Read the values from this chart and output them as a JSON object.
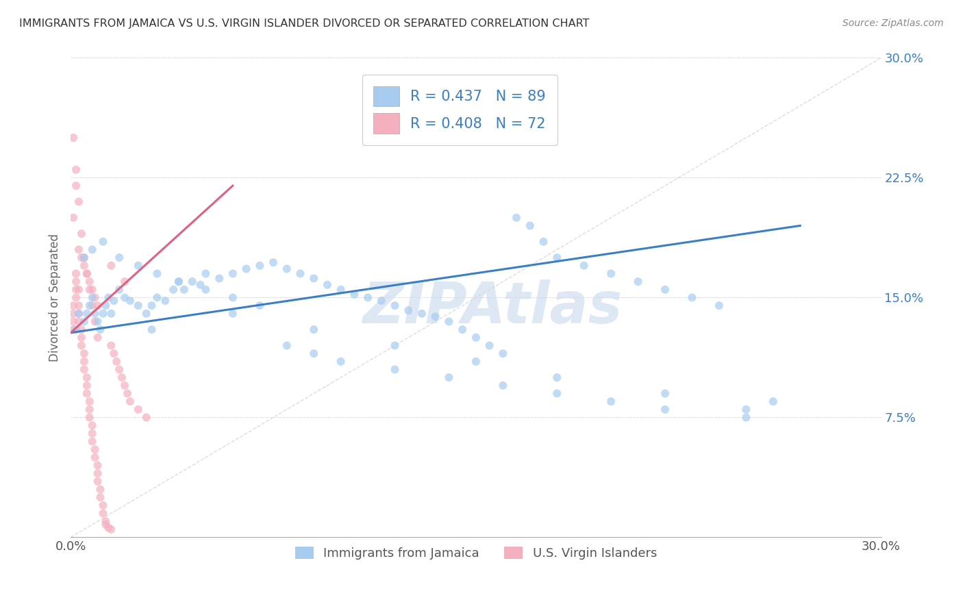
{
  "title": "IMMIGRANTS FROM JAMAICA VS U.S. VIRGIN ISLANDER DIVORCED OR SEPARATED CORRELATION CHART",
  "source": "Source: ZipAtlas.com",
  "ylabel": "Divorced or Separated",
  "xlim": [
    0.0,
    0.3
  ],
  "ylim": [
    0.0,
    0.3
  ],
  "xticks": [
    0.0,
    0.05,
    0.1,
    0.15,
    0.2,
    0.25,
    0.3
  ],
  "xticklabels": [
    "0.0%",
    "",
    "",
    "",
    "",
    "",
    "30.0%"
  ],
  "yticks": [
    0.0,
    0.075,
    0.15,
    0.225,
    0.3
  ],
  "yticklabels": [
    "",
    "7.5%",
    "15.0%",
    "22.5%",
    "30.0%"
  ],
  "blue_R": 0.437,
  "blue_N": 89,
  "pink_R": 0.408,
  "pink_N": 72,
  "blue_color": "#A8CCF0",
  "pink_color": "#F5B0C0",
  "blue_line_color": "#3A7EC6",
  "pink_line_color": "#E06080",
  "blue_legend_label": "Immigrants from Jamaica",
  "pink_legend_label": "U.S. Virgin Islanders",
  "watermark": "ZIPAtlas",
  "blue_scatter_x": [
    0.002,
    0.003,
    0.005,
    0.006,
    0.007,
    0.008,
    0.009,
    0.01,
    0.011,
    0.012,
    0.013,
    0.014,
    0.015,
    0.016,
    0.018,
    0.02,
    0.022,
    0.025,
    0.028,
    0.03,
    0.032,
    0.035,
    0.038,
    0.04,
    0.042,
    0.045,
    0.048,
    0.05,
    0.055,
    0.06,
    0.065,
    0.07,
    0.075,
    0.08,
    0.085,
    0.09,
    0.095,
    0.1,
    0.105,
    0.11,
    0.115,
    0.12,
    0.125,
    0.13,
    0.135,
    0.14,
    0.145,
    0.15,
    0.155,
    0.16,
    0.165,
    0.17,
    0.175,
    0.18,
    0.19,
    0.2,
    0.21,
    0.22,
    0.23,
    0.24,
    0.005,
    0.008,
    0.012,
    0.018,
    0.025,
    0.032,
    0.04,
    0.05,
    0.06,
    0.07,
    0.08,
    0.09,
    0.1,
    0.12,
    0.14,
    0.16,
    0.18,
    0.2,
    0.22,
    0.25,
    0.03,
    0.06,
    0.09,
    0.12,
    0.15,
    0.18,
    0.22,
    0.26,
    0.25
  ],
  "blue_scatter_y": [
    0.13,
    0.14,
    0.135,
    0.14,
    0.145,
    0.15,
    0.14,
    0.135,
    0.13,
    0.14,
    0.145,
    0.15,
    0.14,
    0.148,
    0.155,
    0.15,
    0.148,
    0.145,
    0.14,
    0.145,
    0.15,
    0.148,
    0.155,
    0.16,
    0.155,
    0.16,
    0.158,
    0.165,
    0.162,
    0.165,
    0.168,
    0.17,
    0.172,
    0.168,
    0.165,
    0.162,
    0.158,
    0.155,
    0.152,
    0.15,
    0.148,
    0.145,
    0.142,
    0.14,
    0.138,
    0.135,
    0.13,
    0.125,
    0.12,
    0.115,
    0.2,
    0.195,
    0.185,
    0.175,
    0.17,
    0.165,
    0.16,
    0.155,
    0.15,
    0.145,
    0.175,
    0.18,
    0.185,
    0.175,
    0.17,
    0.165,
    0.16,
    0.155,
    0.15,
    0.145,
    0.12,
    0.115,
    0.11,
    0.105,
    0.1,
    0.095,
    0.09,
    0.085,
    0.08,
    0.075,
    0.13,
    0.14,
    0.13,
    0.12,
    0.11,
    0.1,
    0.09,
    0.085,
    0.08
  ],
  "pink_scatter_x": [
    0.001,
    0.001,
    0.001,
    0.001,
    0.002,
    0.002,
    0.002,
    0.002,
    0.003,
    0.003,
    0.003,
    0.003,
    0.004,
    0.004,
    0.004,
    0.005,
    0.005,
    0.005,
    0.006,
    0.006,
    0.006,
    0.007,
    0.007,
    0.007,
    0.008,
    0.008,
    0.008,
    0.009,
    0.009,
    0.01,
    0.01,
    0.01,
    0.011,
    0.011,
    0.012,
    0.012,
    0.013,
    0.013,
    0.014,
    0.015,
    0.015,
    0.016,
    0.017,
    0.018,
    0.019,
    0.02,
    0.021,
    0.022,
    0.025,
    0.028,
    0.001,
    0.002,
    0.003,
    0.004,
    0.005,
    0.006,
    0.007,
    0.008,
    0.009,
    0.01,
    0.001,
    0.002,
    0.003,
    0.004,
    0.005,
    0.006,
    0.007,
    0.008,
    0.009,
    0.01,
    0.015,
    0.02
  ],
  "pink_scatter_y": [
    0.13,
    0.135,
    0.14,
    0.145,
    0.15,
    0.155,
    0.16,
    0.165,
    0.155,
    0.145,
    0.14,
    0.135,
    0.13,
    0.125,
    0.12,
    0.115,
    0.11,
    0.105,
    0.1,
    0.095,
    0.09,
    0.085,
    0.08,
    0.075,
    0.07,
    0.065,
    0.06,
    0.055,
    0.05,
    0.045,
    0.04,
    0.035,
    0.03,
    0.025,
    0.02,
    0.015,
    0.01,
    0.008,
    0.006,
    0.005,
    0.12,
    0.115,
    0.11,
    0.105,
    0.1,
    0.095,
    0.09,
    0.085,
    0.08,
    0.075,
    0.2,
    0.22,
    0.18,
    0.175,
    0.17,
    0.165,
    0.16,
    0.155,
    0.15,
    0.145,
    0.25,
    0.23,
    0.21,
    0.19,
    0.175,
    0.165,
    0.155,
    0.145,
    0.135,
    0.125,
    0.17,
    0.16
  ],
  "blue_trend_x": [
    0.0,
    0.27
  ],
  "blue_trend_y": [
    0.128,
    0.195
  ],
  "pink_trend_x": [
    0.0,
    0.06
  ],
  "pink_trend_y": [
    0.128,
    0.22
  ]
}
